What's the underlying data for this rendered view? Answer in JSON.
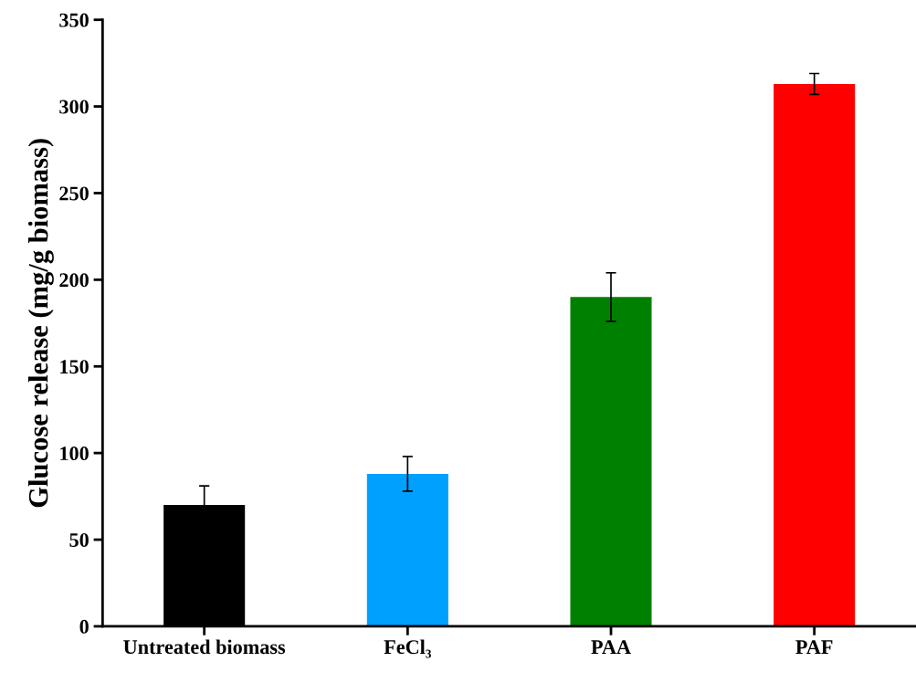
{
  "chart_data": {
    "type": "bar",
    "ylabel": "Glucose release (mg/g biomass)",
    "categories": [
      "Untreated biomass",
      "FeCl₃",
      "PAA",
      "PAF"
    ],
    "values": [
      70,
      88,
      190,
      313
    ],
    "errors": [
      11,
      10,
      14,
      6
    ],
    "colors": [
      "#000000",
      "#00a0ff",
      "#008000",
      "#ff0000"
    ],
    "ylim": [
      0,
      350
    ],
    "yticks": [
      0,
      50,
      100,
      150,
      200,
      250,
      300,
      350
    ],
    "grid": false,
    "legend": false
  }
}
